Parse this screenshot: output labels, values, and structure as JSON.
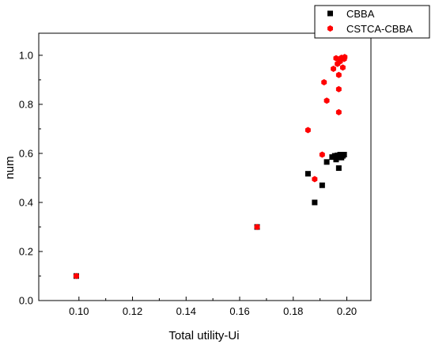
{
  "chart_data": {
    "type": "scatter",
    "title": "",
    "xlabel": "Total utility-Ui",
    "ylabel": "num",
    "xlim": [
      0.085,
      0.209
    ],
    "ylim": [
      0.0,
      1.09
    ],
    "x_ticks": [
      0.1,
      0.12,
      0.14,
      0.16,
      0.18,
      0.2
    ],
    "x_tick_labels": [
      "0.10",
      "0.12",
      "0.14",
      "0.16",
      "0.18",
      "0.20"
    ],
    "y_ticks": [
      0.0,
      0.2,
      0.4,
      0.6,
      0.8,
      1.0
    ],
    "y_tick_labels": [
      "0.0",
      "0.2",
      "0.4",
      "0.6",
      "0.8",
      "1.0"
    ],
    "grid": false,
    "legend": {
      "position": "top-right"
    },
    "series": [
      {
        "name": "CBBA",
        "marker": "square",
        "color": "#000000",
        "points": [
          [
            0.099,
            0.1
          ],
          [
            0.1665,
            0.3
          ],
          [
            0.188,
            0.4
          ],
          [
            0.1908,
            0.47
          ],
          [
            0.1855,
            0.517
          ],
          [
            0.197,
            0.54
          ],
          [
            0.1925,
            0.565
          ],
          [
            0.1945,
            0.585
          ],
          [
            0.1955,
            0.59
          ],
          [
            0.1965,
            0.592
          ],
          [
            0.1975,
            0.595
          ],
          [
            0.1985,
            0.59
          ],
          [
            0.196,
            0.575
          ],
          [
            0.198,
            0.583
          ],
          [
            0.199,
            0.595
          ]
        ]
      },
      {
        "name": "CSTCA-CBBA",
        "marker": "hexagon",
        "color": "#ff0000",
        "points": [
          [
            0.099,
            0.1
          ],
          [
            0.1665,
            0.3
          ],
          [
            0.188,
            0.495
          ],
          [
            0.1908,
            0.595
          ],
          [
            0.1855,
            0.695
          ],
          [
            0.197,
            0.768
          ],
          [
            0.1925,
            0.815
          ],
          [
            0.197,
            0.862
          ],
          [
            0.1915,
            0.89
          ],
          [
            0.197,
            0.92
          ],
          [
            0.195,
            0.945
          ],
          [
            0.1985,
            0.95
          ],
          [
            0.1965,
            0.965
          ],
          [
            0.1975,
            0.975
          ],
          [
            0.199,
            0.985
          ],
          [
            0.196,
            0.988
          ],
          [
            0.198,
            0.99
          ],
          [
            0.1992,
            0.993
          ]
        ]
      }
    ]
  }
}
